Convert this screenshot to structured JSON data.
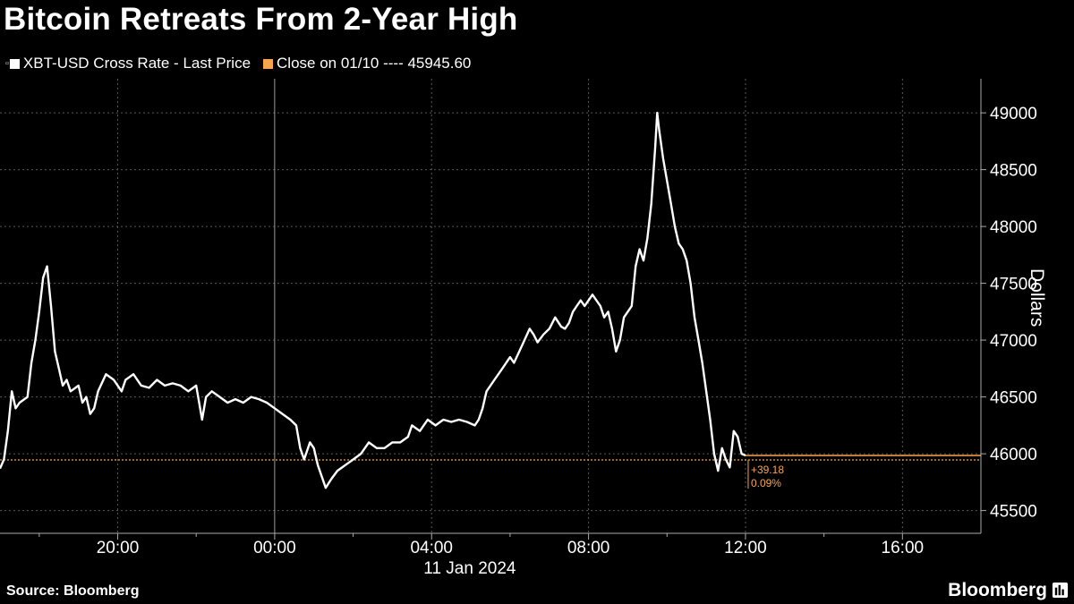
{
  "header": {
    "title": "Bitcoin Retreats From 2-Year High"
  },
  "legend": {
    "series_marker": "▫",
    "series_label": "XBT-USD Cross Rate - Last Price",
    "series_color": "#ffffff",
    "ref_label": "Close on 01/10 ---- 45945.60",
    "ref_color": "#f7a54a"
  },
  "footer": {
    "source": "Source: Bloomberg",
    "brand": "Bloomberg",
    "brand_icon": "bloomberg-terminal-icon"
  },
  "chart_data": {
    "type": "line",
    "title": "Bitcoin Retreats From 2-Year High",
    "ylabel": "Dollars",
    "xlabel": "11 Jan 2024",
    "x_unit": "hours relative to 00:00 on 11 Jan 2024",
    "xlim": [
      -7,
      18
    ],
    "ylim": [
      45300,
      49300
    ],
    "y_axis_side": "right",
    "y_ticks": [
      45500,
      46000,
      46500,
      47000,
      47500,
      48000,
      48500,
      49000
    ],
    "x_ticks": [
      {
        "x": -4,
        "label": "20:00"
      },
      {
        "x": 0,
        "label": "00:00"
      },
      {
        "x": 4,
        "label": "04:00"
      },
      {
        "x": 8,
        "label": "08:00"
      },
      {
        "x": 12,
        "label": "12:00"
      },
      {
        "x": 16,
        "label": "16:00"
      }
    ],
    "minor_x_ticks": [
      -6,
      -2,
      2,
      6,
      10,
      14
    ],
    "date_label": "11 Jan 2024",
    "grid": true,
    "legend_position": "top-left",
    "reference_line": {
      "value": 45945.6,
      "label": "Close on 01/10",
      "color": "#f7a54a"
    },
    "change_annotation": {
      "lines": [
        "+39.18",
        "0.09%"
      ],
      "color": "#f7a54a"
    },
    "series": [
      {
        "name": "XBT-USD Cross Rate - Last Price",
        "color": "#ffffff",
        "points": [
          [
            -7.0,
            45870
          ],
          [
            -6.9,
            45950
          ],
          [
            -6.8,
            46200
          ],
          [
            -6.7,
            46550
          ],
          [
            -6.6,
            46400
          ],
          [
            -6.5,
            46450
          ],
          [
            -6.3,
            46500
          ],
          [
            -6.2,
            46800
          ],
          [
            -6.1,
            47000
          ],
          [
            -6.0,
            47250
          ],
          [
            -5.9,
            47550
          ],
          [
            -5.8,
            47650
          ],
          [
            -5.7,
            47300
          ],
          [
            -5.6,
            46900
          ],
          [
            -5.5,
            46750
          ],
          [
            -5.4,
            46600
          ],
          [
            -5.3,
            46650
          ],
          [
            -5.2,
            46550
          ],
          [
            -5.0,
            46600
          ],
          [
            -4.9,
            46450
          ],
          [
            -4.8,
            46500
          ],
          [
            -4.7,
            46350
          ],
          [
            -4.6,
            46400
          ],
          [
            -4.5,
            46550
          ],
          [
            -4.3,
            46700
          ],
          [
            -4.1,
            46650
          ],
          [
            -3.9,
            46550
          ],
          [
            -3.8,
            46650
          ],
          [
            -3.6,
            46700
          ],
          [
            -3.4,
            46600
          ],
          [
            -3.2,
            46580
          ],
          [
            -3.0,
            46650
          ],
          [
            -2.8,
            46600
          ],
          [
            -2.6,
            46620
          ],
          [
            -2.4,
            46600
          ],
          [
            -2.2,
            46550
          ],
          [
            -2.0,
            46600
          ],
          [
            -1.85,
            46300
          ],
          [
            -1.75,
            46500
          ],
          [
            -1.6,
            46550
          ],
          [
            -1.4,
            46500
          ],
          [
            -1.2,
            46450
          ],
          [
            -1.0,
            46480
          ],
          [
            -0.8,
            46450
          ],
          [
            -0.6,
            46500
          ],
          [
            -0.4,
            46480
          ],
          [
            -0.2,
            46450
          ],
          [
            0.0,
            46400
          ],
          [
            0.2,
            46350
          ],
          [
            0.4,
            46300
          ],
          [
            0.55,
            46250
          ],
          [
            0.65,
            46050
          ],
          [
            0.75,
            45950
          ],
          [
            0.9,
            46100
          ],
          [
            1.0,
            46050
          ],
          [
            1.1,
            45900
          ],
          [
            1.2,
            45800
          ],
          [
            1.3,
            45700
          ],
          [
            1.45,
            45780
          ],
          [
            1.6,
            45850
          ],
          [
            1.8,
            45900
          ],
          [
            2.0,
            45950
          ],
          [
            2.2,
            46000
          ],
          [
            2.4,
            46100
          ],
          [
            2.6,
            46050
          ],
          [
            2.8,
            46050
          ],
          [
            3.0,
            46100
          ],
          [
            3.2,
            46100
          ],
          [
            3.4,
            46150
          ],
          [
            3.5,
            46250
          ],
          [
            3.7,
            46200
          ],
          [
            3.9,
            46300
          ],
          [
            4.1,
            46250
          ],
          [
            4.3,
            46300
          ],
          [
            4.5,
            46280
          ],
          [
            4.7,
            46300
          ],
          [
            4.9,
            46280
          ],
          [
            5.1,
            46250
          ],
          [
            5.2,
            46300
          ],
          [
            5.3,
            46400
          ],
          [
            5.4,
            46550
          ],
          [
            5.5,
            46600
          ],
          [
            5.6,
            46650
          ],
          [
            5.8,
            46750
          ],
          [
            6.0,
            46850
          ],
          [
            6.1,
            46800
          ],
          [
            6.3,
            46950
          ],
          [
            6.5,
            47100
          ],
          [
            6.6,
            47050
          ],
          [
            6.7,
            46980
          ],
          [
            6.85,
            47050
          ],
          [
            7.0,
            47100
          ],
          [
            7.15,
            47200
          ],
          [
            7.3,
            47120
          ],
          [
            7.4,
            47100
          ],
          [
            7.5,
            47150
          ],
          [
            7.6,
            47250
          ],
          [
            7.7,
            47300
          ],
          [
            7.8,
            47350
          ],
          [
            7.9,
            47300
          ],
          [
            8.0,
            47350
          ],
          [
            8.1,
            47400
          ],
          [
            8.2,
            47350
          ],
          [
            8.3,
            47300
          ],
          [
            8.4,
            47200
          ],
          [
            8.5,
            47250
          ],
          [
            8.6,
            47100
          ],
          [
            8.7,
            46900
          ],
          [
            8.8,
            47000
          ],
          [
            8.9,
            47200
          ],
          [
            9.0,
            47250
          ],
          [
            9.1,
            47300
          ],
          [
            9.2,
            47650
          ],
          [
            9.3,
            47800
          ],
          [
            9.4,
            47700
          ],
          [
            9.5,
            47900
          ],
          [
            9.6,
            48200
          ],
          [
            9.7,
            48700
          ],
          [
            9.75,
            49000
          ],
          [
            9.8,
            48850
          ],
          [
            9.9,
            48600
          ],
          [
            10.0,
            48400
          ],
          [
            10.1,
            48200
          ],
          [
            10.2,
            48000
          ],
          [
            10.3,
            47850
          ],
          [
            10.4,
            47800
          ],
          [
            10.5,
            47700
          ],
          [
            10.6,
            47500
          ],
          [
            10.7,
            47200
          ],
          [
            10.8,
            47000
          ],
          [
            10.9,
            46800
          ],
          [
            11.0,
            46550
          ],
          [
            11.1,
            46300
          ],
          [
            11.2,
            46000
          ],
          [
            11.3,
            45850
          ],
          [
            11.4,
            46050
          ],
          [
            11.5,
            45950
          ],
          [
            11.6,
            45880
          ],
          [
            11.7,
            46200
          ],
          [
            11.8,
            46150
          ],
          [
            11.9,
            46000
          ],
          [
            12.0,
            45985
          ]
        ]
      }
    ]
  }
}
